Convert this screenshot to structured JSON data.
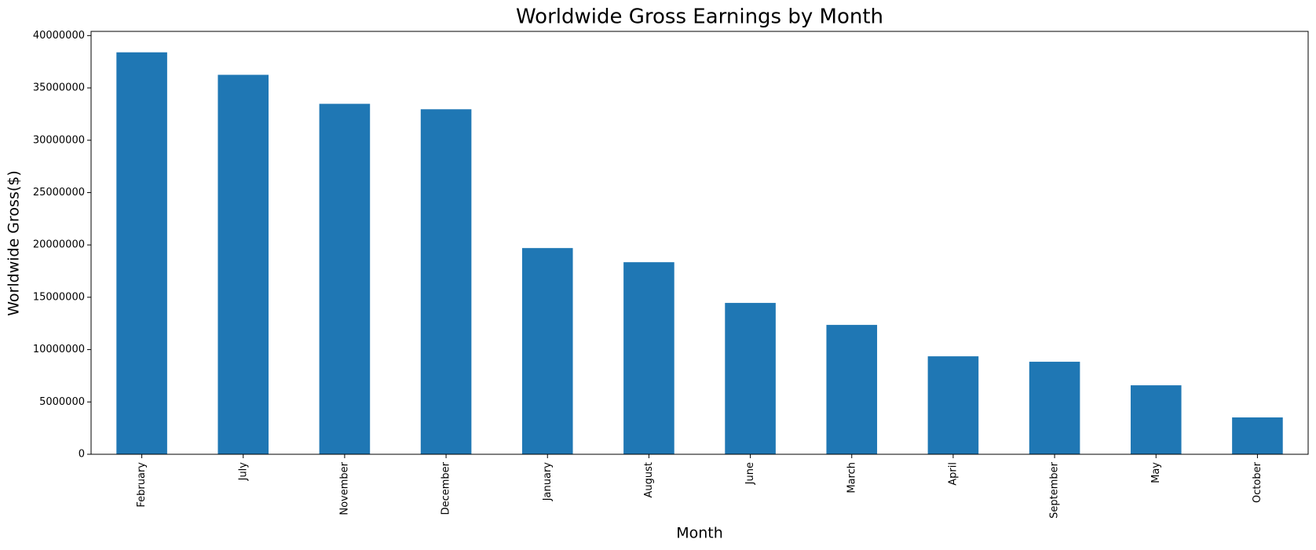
{
  "chart_data": {
    "type": "bar",
    "title": "Worldwide Gross Earnings by Month",
    "x_label": "Month",
    "y_label": "Worldwide Gross($)",
    "categories": [
      "February",
      "July",
      "November",
      "December",
      "January",
      "August",
      "June",
      "March",
      "April",
      "September",
      "May",
      "October"
    ],
    "values": [
      38400000,
      36250000,
      33480000,
      32960000,
      19700000,
      18350000,
      14460000,
      12360000,
      9360000,
      8840000,
      6590000,
      3520000
    ],
    "color": "#1f77b4",
    "ylim": [
      0,
      40400000
    ],
    "yticks": [
      0,
      5000000,
      10000000,
      15000000,
      20000000,
      25000000,
      30000000,
      35000000,
      40000000
    ],
    "grid": false
  }
}
